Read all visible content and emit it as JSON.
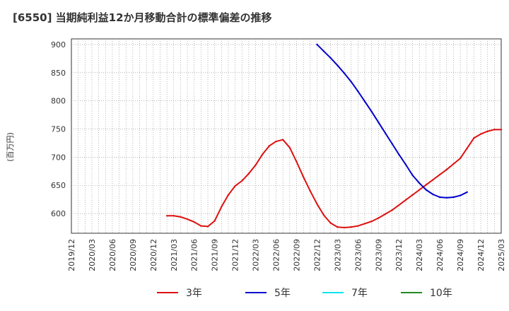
{
  "chart_data": {
    "type": "line",
    "title": "[6550]  当期純利益12か月移動合計の標準偏差の推移",
    "ylabel": "(百万円)",
    "xlabel": "",
    "ylim": [
      565,
      910
    ],
    "yticks": [
      600,
      650,
      700,
      750,
      800,
      850,
      900
    ],
    "x_start": "2019/12",
    "x_end": "2025/03",
    "xticks": [
      "2019/12",
      "2020/03",
      "2020/06",
      "2020/09",
      "2020/12",
      "2021/03",
      "2021/06",
      "2021/09",
      "2021/12",
      "2022/03",
      "2022/06",
      "2022/09",
      "2022/12",
      "2023/03",
      "2023/06",
      "2023/09",
      "2023/12",
      "2024/03",
      "2024/06",
      "2024/09",
      "2024/12",
      "2025/03"
    ],
    "grid": true,
    "legend_position": "bottom",
    "series": [
      {
        "name": "3年",
        "color": "#dd1111",
        "start": "2021/02",
        "values": [
          596,
          596,
          594,
          590,
          585,
          578,
          577,
          587,
          612,
          633,
          649,
          658,
          671,
          686,
          705,
          720,
          728,
          731,
          717,
          692,
          665,
          640,
          617,
          597,
          583,
          576,
          575,
          576,
          578,
          582,
          586,
          592,
          599,
          606,
          615,
          624,
          633,
          642,
          651,
          660,
          669,
          678,
          688,
          698,
          716,
          734,
          741,
          746,
          749,
          749
        ]
      },
      {
        "name": "5年",
        "color": "#0000cc",
        "start": "2022/12",
        "values": [
          900,
          888,
          876,
          863,
          849,
          834,
          817,
          799,
          781,
          762,
          743,
          724,
          705,
          687,
          668,
          654,
          642,
          634,
          629,
          628,
          629,
          632,
          638
        ]
      },
      {
        "name": "7年",
        "color": "#00e5ee",
        "start": "",
        "values": []
      },
      {
        "name": "10年",
        "color": "#228b22",
        "start": "",
        "values": []
      }
    ]
  }
}
